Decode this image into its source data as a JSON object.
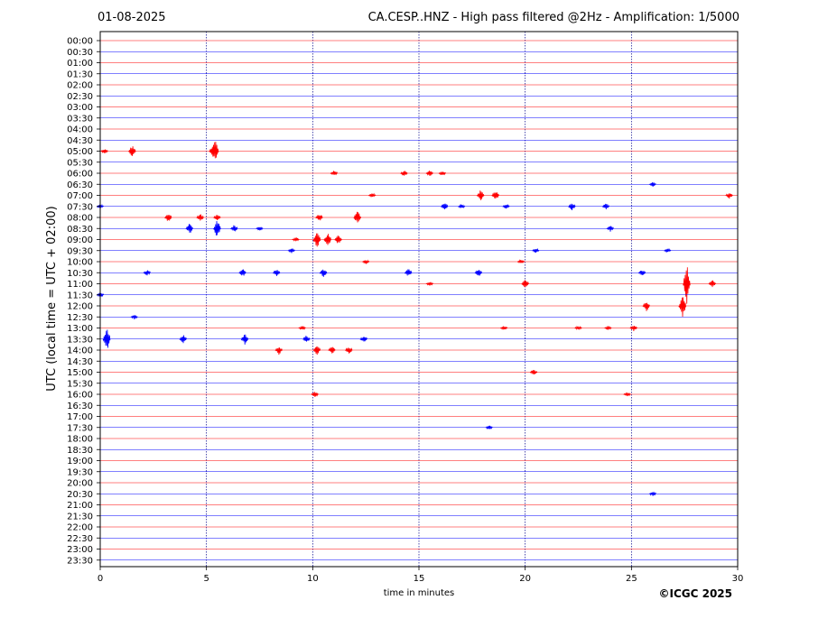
{
  "header": {
    "date": "01-08-2025",
    "title": "CA.CESP..HNZ - High pass filtered @2Hz - Amplification: 1/5000"
  },
  "footer": {
    "copyright": "©ICGC 2025"
  },
  "colors": {
    "trace_red": "#ff0000",
    "trace_blue": "#0000ff",
    "frame": "#000000",
    "grid": "#00008b"
  },
  "chart_data": {
    "type": "line",
    "title": "CA.CESP..HNZ - High pass filtered @2Hz - Amplification: 1/5000",
    "xlabel": "time in minutes",
    "ylabel": "UTC (local time = UTC + 02:00)",
    "xlim": [
      0,
      30
    ],
    "x_ticks": [
      "0",
      "5",
      "10",
      "15",
      "20",
      "25",
      "30"
    ],
    "grid": "vertical dotted lines at 5, 10, 15, 20, 25 minutes",
    "series": [
      {
        "label": "00:00",
        "color": "red",
        "events": []
      },
      {
        "label": "00:30",
        "color": "blue",
        "events": []
      },
      {
        "label": "01:00",
        "color": "red",
        "events": []
      },
      {
        "label": "01:30",
        "color": "blue",
        "events": []
      },
      {
        "label": "02:00",
        "color": "red",
        "events": []
      },
      {
        "label": "02:30",
        "color": "blue",
        "events": []
      },
      {
        "label": "03:00",
        "color": "red",
        "events": []
      },
      {
        "label": "03:30",
        "color": "blue",
        "events": []
      },
      {
        "label": "04:00",
        "color": "red",
        "events": []
      },
      {
        "label": "04:30",
        "color": "blue",
        "events": []
      },
      {
        "label": "05:00",
        "color": "red",
        "events": [
          [
            0.2,
            0.3
          ],
          [
            1.5,
            0.8
          ],
          [
            5.3,
            0.9
          ],
          [
            5.4,
            1.6
          ]
        ]
      },
      {
        "label": "05:30",
        "color": "blue",
        "events": []
      },
      {
        "label": "06:00",
        "color": "red",
        "events": [
          [
            11.0,
            0.4
          ],
          [
            14.3,
            0.4
          ],
          [
            15.5,
            0.4
          ],
          [
            16.1,
            0.3
          ]
        ]
      },
      {
        "label": "06:30",
        "color": "blue",
        "events": [
          [
            26.0,
            0.3
          ]
        ]
      },
      {
        "label": "07:00",
        "color": "red",
        "events": [
          [
            12.8,
            0.3
          ],
          [
            17.9,
            0.7
          ],
          [
            18.6,
            0.7
          ],
          [
            29.6,
            0.4
          ]
        ]
      },
      {
        "label": "07:30",
        "color": "blue",
        "events": [
          [
            0.0,
            0.3
          ],
          [
            16.2,
            0.5
          ],
          [
            17.0,
            0.3
          ],
          [
            19.1,
            0.3
          ],
          [
            22.2,
            0.5
          ],
          [
            23.8,
            0.4
          ]
        ]
      },
      {
        "label": "08:00",
        "color": "red",
        "events": [
          [
            3.2,
            0.6
          ],
          [
            4.7,
            0.5
          ],
          [
            5.5,
            0.4
          ],
          [
            10.3,
            0.5
          ],
          [
            12.1,
            0.9
          ]
        ]
      },
      {
        "label": "08:30",
        "color": "blue",
        "events": [
          [
            4.2,
            0.7
          ],
          [
            5.5,
            1.3
          ],
          [
            6.3,
            0.5
          ],
          [
            7.5,
            0.3
          ],
          [
            24.0,
            0.4
          ]
        ]
      },
      {
        "label": "09:00",
        "color": "red",
        "events": [
          [
            10.2,
            1.2
          ],
          [
            10.7,
            0.9
          ],
          [
            11.2,
            0.6
          ],
          [
            9.2,
            0.3
          ]
        ]
      },
      {
        "label": "09:30",
        "color": "blue",
        "events": [
          [
            9.0,
            0.3
          ],
          [
            20.5,
            0.3
          ],
          [
            26.7,
            0.3
          ]
        ]
      },
      {
        "label": "10:00",
        "color": "red",
        "events": [
          [
            12.5,
            0.3
          ],
          [
            19.8,
            0.3
          ]
        ]
      },
      {
        "label": "10:30",
        "color": "blue",
        "events": [
          [
            2.2,
            0.4
          ],
          [
            6.7,
            0.5
          ],
          [
            8.3,
            0.5
          ],
          [
            10.5,
            0.6
          ],
          [
            14.5,
            0.5
          ],
          [
            17.8,
            0.5
          ],
          [
            25.5,
            0.4
          ]
        ]
      },
      {
        "label": "11:00",
        "color": "red",
        "events": [
          [
            15.5,
            0.3
          ],
          [
            20.0,
            0.6
          ],
          [
            27.6,
            2.5
          ],
          [
            28.8,
            0.5
          ]
        ]
      },
      {
        "label": "11:30",
        "color": "blue",
        "events": [
          [
            0.0,
            0.3
          ]
        ]
      },
      {
        "label": "12:00",
        "color": "red",
        "events": [
          [
            25.7,
            0.7
          ],
          [
            27.4,
            1.6
          ]
        ]
      },
      {
        "label": "12:30",
        "color": "blue",
        "events": [
          [
            1.6,
            0.3
          ]
        ]
      },
      {
        "label": "13:00",
        "color": "red",
        "events": [
          [
            9.5,
            0.3
          ],
          [
            19.0,
            0.3
          ],
          [
            22.5,
            0.3
          ],
          [
            23.9,
            0.3
          ],
          [
            25.1,
            0.4
          ]
        ]
      },
      {
        "label": "13:30",
        "color": "blue",
        "events": [
          [
            0.3,
            1.6
          ],
          [
            3.9,
            0.6
          ],
          [
            6.8,
            0.7
          ],
          [
            9.7,
            0.5
          ],
          [
            12.4,
            0.5
          ]
        ]
      },
      {
        "label": "14:00",
        "color": "red",
        "events": [
          [
            8.4,
            0.6
          ],
          [
            10.2,
            0.6
          ],
          [
            10.9,
            0.5
          ],
          [
            11.7,
            0.5
          ]
        ]
      },
      {
        "label": "14:30",
        "color": "blue",
        "events": []
      },
      {
        "label": "15:00",
        "color": "red",
        "events": [
          [
            20.4,
            0.4
          ]
        ]
      },
      {
        "label": "15:30",
        "color": "blue",
        "events": []
      },
      {
        "label": "16:00",
        "color": "red",
        "events": [
          [
            10.1,
            0.4
          ],
          [
            24.8,
            0.3
          ]
        ]
      },
      {
        "label": "16:30",
        "color": "blue",
        "events": []
      },
      {
        "label": "17:00",
        "color": "red",
        "events": []
      },
      {
        "label": "17:30",
        "color": "blue",
        "events": [
          [
            18.3,
            0.3
          ]
        ]
      },
      {
        "label": "18:00",
        "color": "red",
        "events": []
      },
      {
        "label": "18:30",
        "color": "blue",
        "events": []
      },
      {
        "label": "19:00",
        "color": "red",
        "events": []
      },
      {
        "label": "19:30",
        "color": "blue",
        "events": []
      },
      {
        "label": "20:00",
        "color": "red",
        "events": []
      },
      {
        "label": "20:30",
        "color": "blue",
        "events": [
          [
            26.0,
            0.3
          ]
        ]
      },
      {
        "label": "21:00",
        "color": "red",
        "events": []
      },
      {
        "label": "21:30",
        "color": "blue",
        "events": []
      },
      {
        "label": "22:00",
        "color": "red",
        "events": []
      },
      {
        "label": "22:30",
        "color": "blue",
        "events": []
      },
      {
        "label": "23:00",
        "color": "red",
        "events": []
      },
      {
        "label": "23:30",
        "color": "blue",
        "events": []
      }
    ]
  }
}
